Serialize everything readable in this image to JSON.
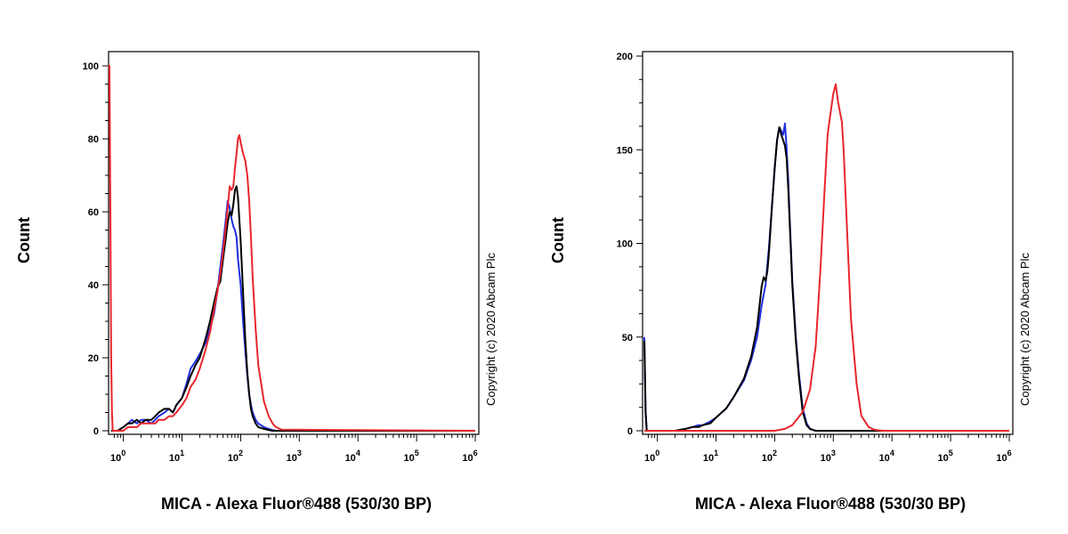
{
  "colors": {
    "blue": "#1f2fe0",
    "black": "#000000",
    "red": "#e8262c"
  },
  "chart_data": [
    {
      "type": "line",
      "xscale": "log",
      "xlim": [
        0.6,
        1000000
      ],
      "ylim": [
        0,
        100
      ],
      "xlabel": "MICA - Alexa Fluor®488 (530/30 BP)",
      "ylabel": "Count",
      "annotation": "Copyright (c) 2020 Abcam Plc",
      "y_ticks": [
        0,
        20,
        40,
        60,
        80,
        100
      ],
      "x_ticks": [
        {
          "base": "10",
          "exp": "0",
          "value": 1
        },
        {
          "base": "10",
          "exp": "1",
          "value": 10
        },
        {
          "base": "10",
          "exp": "2",
          "value": 100
        },
        {
          "base": "10",
          "exp": "3",
          "value": 1000
        },
        {
          "base": "10",
          "exp": "4",
          "value": 10000
        },
        {
          "base": "10",
          "exp": "5",
          "value": 100000
        },
        {
          "base": "10",
          "exp": "6",
          "value": 1000000
        }
      ],
      "series": [
        {
          "color_key": "blue",
          "x": [
            0.62,
            0.66,
            0.7,
            0.75,
            0.8,
            1.0,
            1.2,
            1.4,
            1.7,
            2.0,
            2.4,
            3.0,
            3.5,
            4.0,
            5.0,
            6.0,
            7.0,
            8.0,
            10,
            12,
            14,
            17,
            20,
            25,
            30,
            35,
            40,
            45,
            50,
            55,
            60,
            65,
            70,
            75,
            80,
            85,
            90,
            100,
            110,
            120,
            130,
            140,
            150,
            160,
            180,
            200,
            250,
            300,
            350,
            400,
            500,
            1000000
          ],
          "y": [
            0,
            0,
            0,
            0,
            0,
            1,
            2,
            3,
            2,
            3,
            3,
            2,
            3,
            4,
            5,
            6,
            5,
            7,
            9,
            13,
            17,
            19,
            21,
            24,
            28,
            32,
            38,
            45,
            51,
            57,
            63,
            61,
            58,
            56,
            55,
            53,
            47,
            40,
            30,
            22,
            15,
            10,
            7,
            5,
            3,
            2,
            1,
            0.5,
            0.2,
            0,
            0,
            0
          ]
        },
        {
          "color_key": "black",
          "x": [
            0.62,
            0.66,
            0.7,
            0.75,
            0.8,
            1.0,
            1.2,
            1.4,
            1.7,
            2.0,
            2.4,
            3.0,
            3.5,
            4.0,
            5.0,
            6.0,
            7.0,
            8.0,
            10,
            12,
            14,
            17,
            20,
            25,
            30,
            35,
            40,
            45,
            50,
            55,
            60,
            65,
            70,
            75,
            80,
            85,
            90,
            100,
            110,
            120,
            130,
            140,
            150,
            160,
            180,
            200,
            250,
            300,
            350,
            400,
            500,
            1000000
          ],
          "y": [
            0,
            0,
            0,
            0,
            0,
            1,
            2,
            2,
            3,
            2,
            3,
            3,
            4,
            5,
            6,
            6,
            5,
            7,
            9,
            12,
            15,
            18,
            20,
            25,
            30,
            35,
            39,
            41,
            47,
            52,
            57,
            60,
            59,
            62,
            66,
            67,
            64,
            52,
            38,
            25,
            16,
            10,
            6,
            4,
            2,
            1,
            0.5,
            0.2,
            0,
            0,
            0,
            0
          ]
        },
        {
          "color_key": "red",
          "x": [
            0.55,
            0.58,
            0.6,
            0.62,
            0.64,
            0.66,
            0.68,
            0.7,
            0.75,
            0.8,
            1.0,
            1.2,
            1.4,
            1.7,
            2.0,
            2.4,
            3.0,
            3.5,
            4.0,
            5.0,
            6.0,
            7.0,
            8.0,
            10,
            12,
            14,
            17,
            20,
            25,
            30,
            35,
            40,
            45,
            50,
            55,
            60,
            65,
            70,
            75,
            80,
            85,
            90,
            95,
            100,
            110,
            120,
            130,
            140,
            150,
            160,
            180,
            200,
            250,
            300,
            350,
            400,
            500,
            1000000
          ],
          "y": [
            100,
            100,
            60,
            20,
            5,
            0,
            0,
            0,
            0,
            0,
            0,
            1,
            1,
            1,
            2,
            2,
            2,
            2,
            3,
            3,
            4,
            4,
            5,
            7,
            9,
            12,
            14,
            17,
            22,
            27,
            33,
            38,
            43,
            49,
            55,
            61,
            67,
            66,
            67,
            72,
            76,
            80,
            81,
            79,
            76,
            74,
            70,
            63,
            53,
            42,
            28,
            18,
            8,
            4,
            2,
            1,
            0.3,
            0
          ]
        }
      ]
    },
    {
      "type": "line",
      "xscale": "log",
      "xlim": [
        0.6,
        1000000
      ],
      "ylim": [
        0,
        200
      ],
      "xlabel": "MICA - Alexa Fluor®488 (530/30 BP)",
      "ylabel": "Count",
      "annotation": "Copyright (c) 2020 Abcam Plc",
      "y_ticks": [
        0,
        50,
        100,
        150,
        200
      ],
      "x_ticks": [
        {
          "base": "10",
          "exp": "0",
          "value": 1
        },
        {
          "base": "10",
          "exp": "1",
          "value": 10
        },
        {
          "base": "10",
          "exp": "2",
          "value": 100
        },
        {
          "base": "10",
          "exp": "3",
          "value": 1000
        },
        {
          "base": "10",
          "exp": "4",
          "value": 10000
        },
        {
          "base": "10",
          "exp": "5",
          "value": 100000
        },
        {
          "base": "10",
          "exp": "6",
          "value": 1000000
        }
      ],
      "series": [
        {
          "color_key": "blue",
          "x": [
            0.6,
            0.63,
            0.66,
            0.7,
            1.0,
            2,
            3,
            4,
            5,
            6,
            8,
            10,
            15,
            20,
            30,
            40,
            50,
            60,
            70,
            80,
            90,
            100,
            110,
            120,
            130,
            140,
            150,
            160,
            170,
            180,
            200,
            230,
            260,
            300,
            350,
            400,
            500,
            700,
            1000000
          ],
          "y": [
            50,
            10,
            0,
            0,
            0,
            0,
            1,
            2,
            3,
            3,
            5,
            7,
            12,
            18,
            27,
            38,
            50,
            67,
            78,
            98,
            120,
            140,
            155,
            162,
            160,
            158,
            164,
            150,
            135,
            115,
            80,
            50,
            30,
            12,
            4,
            1,
            0,
            0,
            0
          ]
        },
        {
          "color_key": "black",
          "x": [
            0.6,
            0.63,
            0.66,
            0.7,
            1.0,
            2,
            3,
            4,
            5,
            6,
            8,
            10,
            15,
            20,
            30,
            40,
            50,
            60,
            65,
            70,
            75,
            80,
            90,
            100,
            110,
            120,
            130,
            140,
            150,
            160,
            170,
            180,
            200,
            230,
            260,
            300,
            350,
            400,
            500,
            700,
            1000000
          ],
          "y": [
            48,
            10,
            0,
            0,
            0,
            0,
            1,
            2,
            2,
            3,
            4,
            7,
            12,
            18,
            28,
            40,
            55,
            77,
            82,
            80,
            85,
            95,
            120,
            140,
            155,
            162,
            158,
            155,
            152,
            145,
            130,
            112,
            78,
            48,
            28,
            10,
            3,
            1,
            0,
            0,
            0
          ]
        },
        {
          "color_key": "red",
          "x": [
            0.6,
            1,
            10,
            30,
            50,
            80,
            100,
            150,
            200,
            300,
            400,
            500,
            600,
            700,
            800,
            900,
            1000,
            1100,
            1200,
            1300,
            1400,
            1500,
            1700,
            2000,
            2500,
            3000,
            4000,
            5000,
            7000,
            1000000
          ],
          "y": [
            0,
            0,
            0,
            0,
            0,
            0,
            0,
            1,
            3,
            10,
            22,
            45,
            85,
            125,
            158,
            170,
            180,
            185,
            176,
            170,
            165,
            150,
            110,
            60,
            25,
            8,
            2,
            0.5,
            0,
            0
          ]
        }
      ]
    }
  ]
}
